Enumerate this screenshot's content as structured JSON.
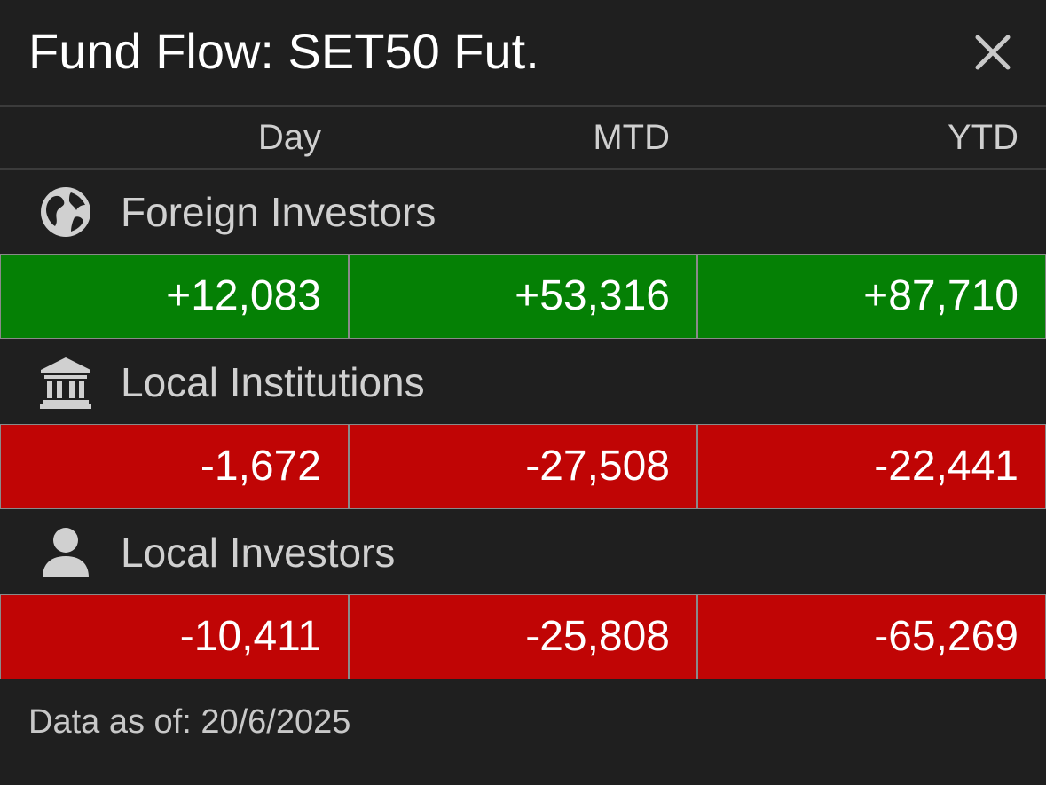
{
  "title": "Fund Flow: SET50 Fut.",
  "icons": {
    "close": "close-icon",
    "foreign": "globe-icon",
    "institutions": "bank-icon",
    "local": "person-icon"
  },
  "colors": {
    "background": "#1f1f1f",
    "positive": "#058005",
    "negative": "#c00505",
    "text": "#ffffff",
    "muted": "#d0d0d0"
  },
  "columns": [
    "Day",
    "MTD",
    "YTD"
  ],
  "groups": [
    {
      "label": "Foreign Investors",
      "values": [
        "+12,083",
        "+53,316",
        "+87,710"
      ],
      "signs": [
        "positive",
        "positive",
        "positive"
      ]
    },
    {
      "label": "Local Institutions",
      "values": [
        "-1,672",
        "-27,508",
        "-22,441"
      ],
      "signs": [
        "negative",
        "negative",
        "negative"
      ]
    },
    {
      "label": "Local Investors",
      "values": [
        "-10,411",
        "-25,808",
        "-65,269"
      ],
      "signs": [
        "negative",
        "negative",
        "negative"
      ]
    }
  ],
  "footer": "Data as of: 20/6/2025"
}
